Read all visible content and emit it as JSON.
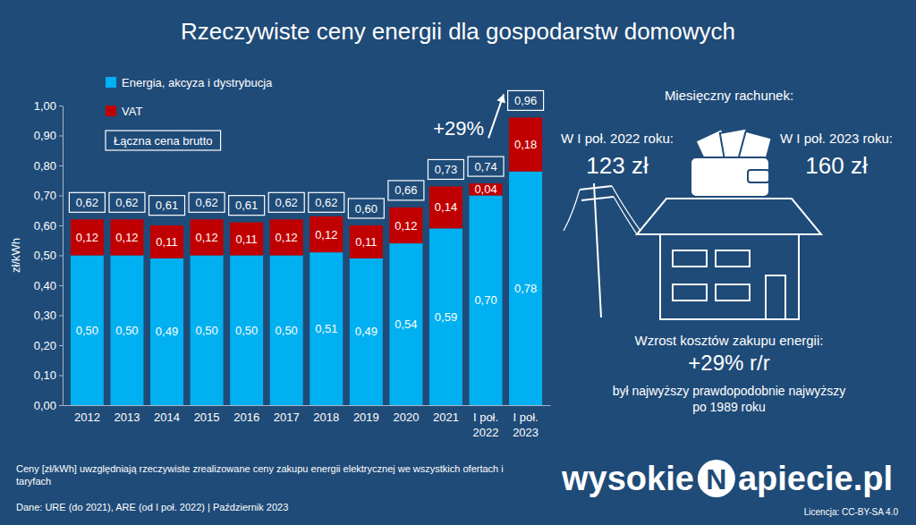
{
  "chart_data": {
    "type": "bar",
    "title": "Rzeczywiste ceny energii dla gospodarstw domowych",
    "ylabel": "zł/kWh",
    "categories": [
      "2012",
      "2013",
      "2014",
      "2015",
      "2016",
      "2017",
      "2018",
      "2019",
      "2020",
      "2021",
      "I poł. 2022",
      "I poł. 2023"
    ],
    "series": [
      {
        "name": "Energia, akcyza i dystrybucja",
        "color": "#00b0f0",
        "values": [
          0.5,
          0.5,
          0.49,
          0.5,
          0.5,
          0.5,
          0.51,
          0.49,
          0.54,
          0.59,
          0.7,
          0.78
        ],
        "value_labels": [
          "0,50",
          "0,50",
          "0,49",
          "0,50",
          "0,50",
          "0,50",
          "0,51",
          "0,49",
          "0,54",
          "0,59",
          "0,70",
          "0,78"
        ]
      },
      {
        "name": "VAT",
        "color": "#c00000",
        "values": [
          0.12,
          0.12,
          0.11,
          0.12,
          0.11,
          0.12,
          0.12,
          0.11,
          0.12,
          0.14,
          0.04,
          0.18
        ],
        "value_labels": [
          "0,12",
          "0,12",
          "0,11",
          "0,12",
          "0,11",
          "0,12",
          "0,12",
          "0,11",
          "0,12",
          "0,14",
          "0,04",
          "0,18"
        ]
      }
    ],
    "totals": {
      "name": "Łączna cena brutto",
      "values": [
        0.62,
        0.62,
        0.61,
        0.62,
        0.61,
        0.62,
        0.62,
        0.6,
        0.66,
        0.73,
        0.74,
        0.96
      ],
      "value_labels": [
        "0,62",
        "0,62",
        "0,61",
        "0,62",
        "0,61",
        "0,62",
        "0,62",
        "0,60",
        "0,66",
        "0,73",
        "0,74",
        "0,96"
      ]
    },
    "annotations": [
      {
        "text": "+29%"
      }
    ],
    "ylim": [
      0,
      1.0
    ],
    "yticks": [
      {
        "value": 0,
        "label": "0,00"
      },
      {
        "value": 0.1,
        "label": "0,10"
      },
      {
        "value": 0.2,
        "label": "0,20"
      },
      {
        "value": 0.3,
        "label": "0,30"
      },
      {
        "value": 0.4,
        "label": "0,40"
      },
      {
        "value": 0.5,
        "label": "0,50"
      },
      {
        "value": 0.6,
        "label": "0,60"
      },
      {
        "value": 0.7,
        "label": "0,70"
      },
      {
        "value": 0.8,
        "label": "0,80"
      },
      {
        "value": 0.9,
        "label": "0,90"
      },
      {
        "value": 1.0,
        "label": "1,00"
      }
    ],
    "stacked": true,
    "data_labels": true,
    "grid": false,
    "legend": "top-left"
  },
  "panel": {
    "heading": "Miesięczny rachunek:",
    "bills": [
      {
        "label": "W I poł. 2022 roku:",
        "value": "123 zł"
      },
      {
        "label": "W I poł. 2023 roku:",
        "value": "160 zł"
      }
    ],
    "growth_heading": "Wzrost kosztów zakupu energii:",
    "growth": "+29% r/r",
    "growth_note": [
      "był najwyższy prawdopodobnie najwyższy",
      "po 1989 roku"
    ]
  },
  "footer": {
    "note": "Ceny [zł/kWh] uwzględniają rzeczywiste zrealizowane ceny zakupu energii elektrycznej we wszystkich ofertach i taryfach",
    "source": "Dane: URE (do 2021), ARE (od I poł. 2022)  |  Październik 2023",
    "logo": [
      "wysokie",
      "N",
      "apiecie.pl"
    ],
    "license": "Licencja: CC-BY-SA 4.0"
  }
}
